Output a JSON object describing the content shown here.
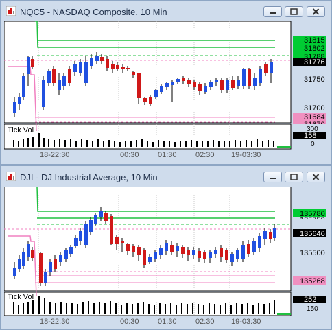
{
  "windows": [
    {
      "title": "NQC5 - NASDAQ Composite, 10 Min",
      "indicator_label": "Tick Vol",
      "x_labels": [
        "18-22:30",
        "00:30",
        "01:30",
        "02:30",
        "19-03:30"
      ],
      "price_labels": [
        "31750",
        "31700"
      ],
      "price_tags": [
        {
          "text": "31815",
          "bg": "#00cc33",
          "fg": "#000000"
        },
        {
          "text": "31802",
          "bg": "#00cc33",
          "fg": "#000000"
        },
        {
          "text": "31788",
          "bg": "#00cc33",
          "fg": "#000000"
        },
        {
          "text": "31776",
          "bg": "#000000",
          "fg": "#ffffff"
        },
        {
          "text": "31684",
          "bg": "#f090c0",
          "fg": "#000000"
        },
        {
          "text": "31670",
          "bg": "#f090c0",
          "fg": "#000000"
        }
      ],
      "vol_labels": [
        "300",
        "0"
      ],
      "vol_tag": "158"
    },
    {
      "title": "DJI - DJ Industrial Average, 10 Min",
      "indicator_label": "Tick Vol",
      "x_labels": [
        "18-22:30",
        "00:30",
        "01:30",
        "02:30",
        "19-03:30"
      ],
      "price_labels": [
        "135750",
        "135500"
      ],
      "price_tags": [
        {
          "text": "135780",
          "bg": "#00cc33",
          "fg": "#000000"
        },
        {
          "text": "135646",
          "bg": "#000000",
          "fg": "#ffffff"
        },
        {
          "text": "135268",
          "bg": "#f090c0",
          "fg": "#000000"
        }
      ],
      "vol_labels": [
        "150"
      ],
      "vol_tag": "252"
    }
  ],
  "colors": {
    "up_candle": "#2050e0",
    "down_candle": "#d01818",
    "support": "#f080c0",
    "resistance": "#20c040"
  }
}
